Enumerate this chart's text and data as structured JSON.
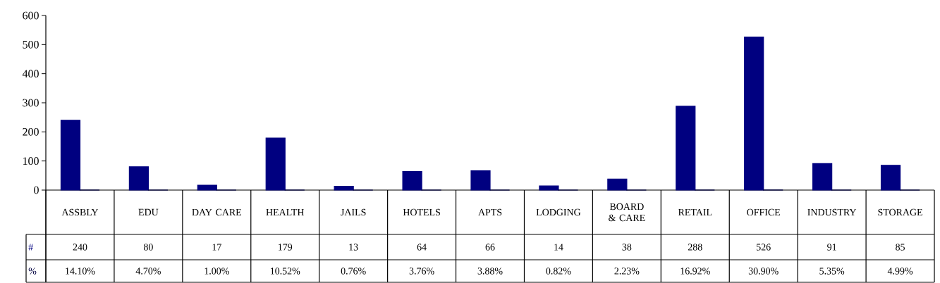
{
  "chart_data": {
    "type": "bar",
    "categories": [
      "ASSBLY",
      "EDU",
      "DAY CARE",
      "HEALTH",
      "JAILS",
      "HOTELS",
      "APTS",
      "LODGING",
      "BOARD & CARE",
      "RETAIL",
      "OFFICE",
      "INDUSTRY",
      "STORAGE"
    ],
    "series": [
      {
        "name": "#",
        "color": "#000080",
        "values": [
          240,
          80,
          17,
          179,
          13,
          64,
          66,
          14,
          38,
          288,
          526,
          91,
          85
        ],
        "value_labels": [
          "240",
          "80",
          "17",
          "179",
          "13",
          "64",
          "66",
          "14",
          "38",
          "288",
          "526",
          "91",
          "85"
        ]
      },
      {
        "name": "%",
        "color": "#000040",
        "values": [
          0.141,
          0.047,
          0.01,
          0.1052,
          0.0076,
          0.0376,
          0.0388,
          0.0082,
          0.0223,
          0.1692,
          0.309,
          0.0535,
          0.0499
        ],
        "value_labels": [
          "14.10%",
          "4.70%",
          "1.00%",
          "10.52%",
          "0.76%",
          "3.76%",
          "3.88%",
          "0.82%",
          "2.23%",
          "16.92%",
          "30.90%",
          "5.35%",
          "4.99%"
        ]
      }
    ],
    "ylim": [
      0,
      600
    ],
    "yticks": [
      0,
      100,
      200,
      300,
      400,
      500,
      600
    ]
  }
}
